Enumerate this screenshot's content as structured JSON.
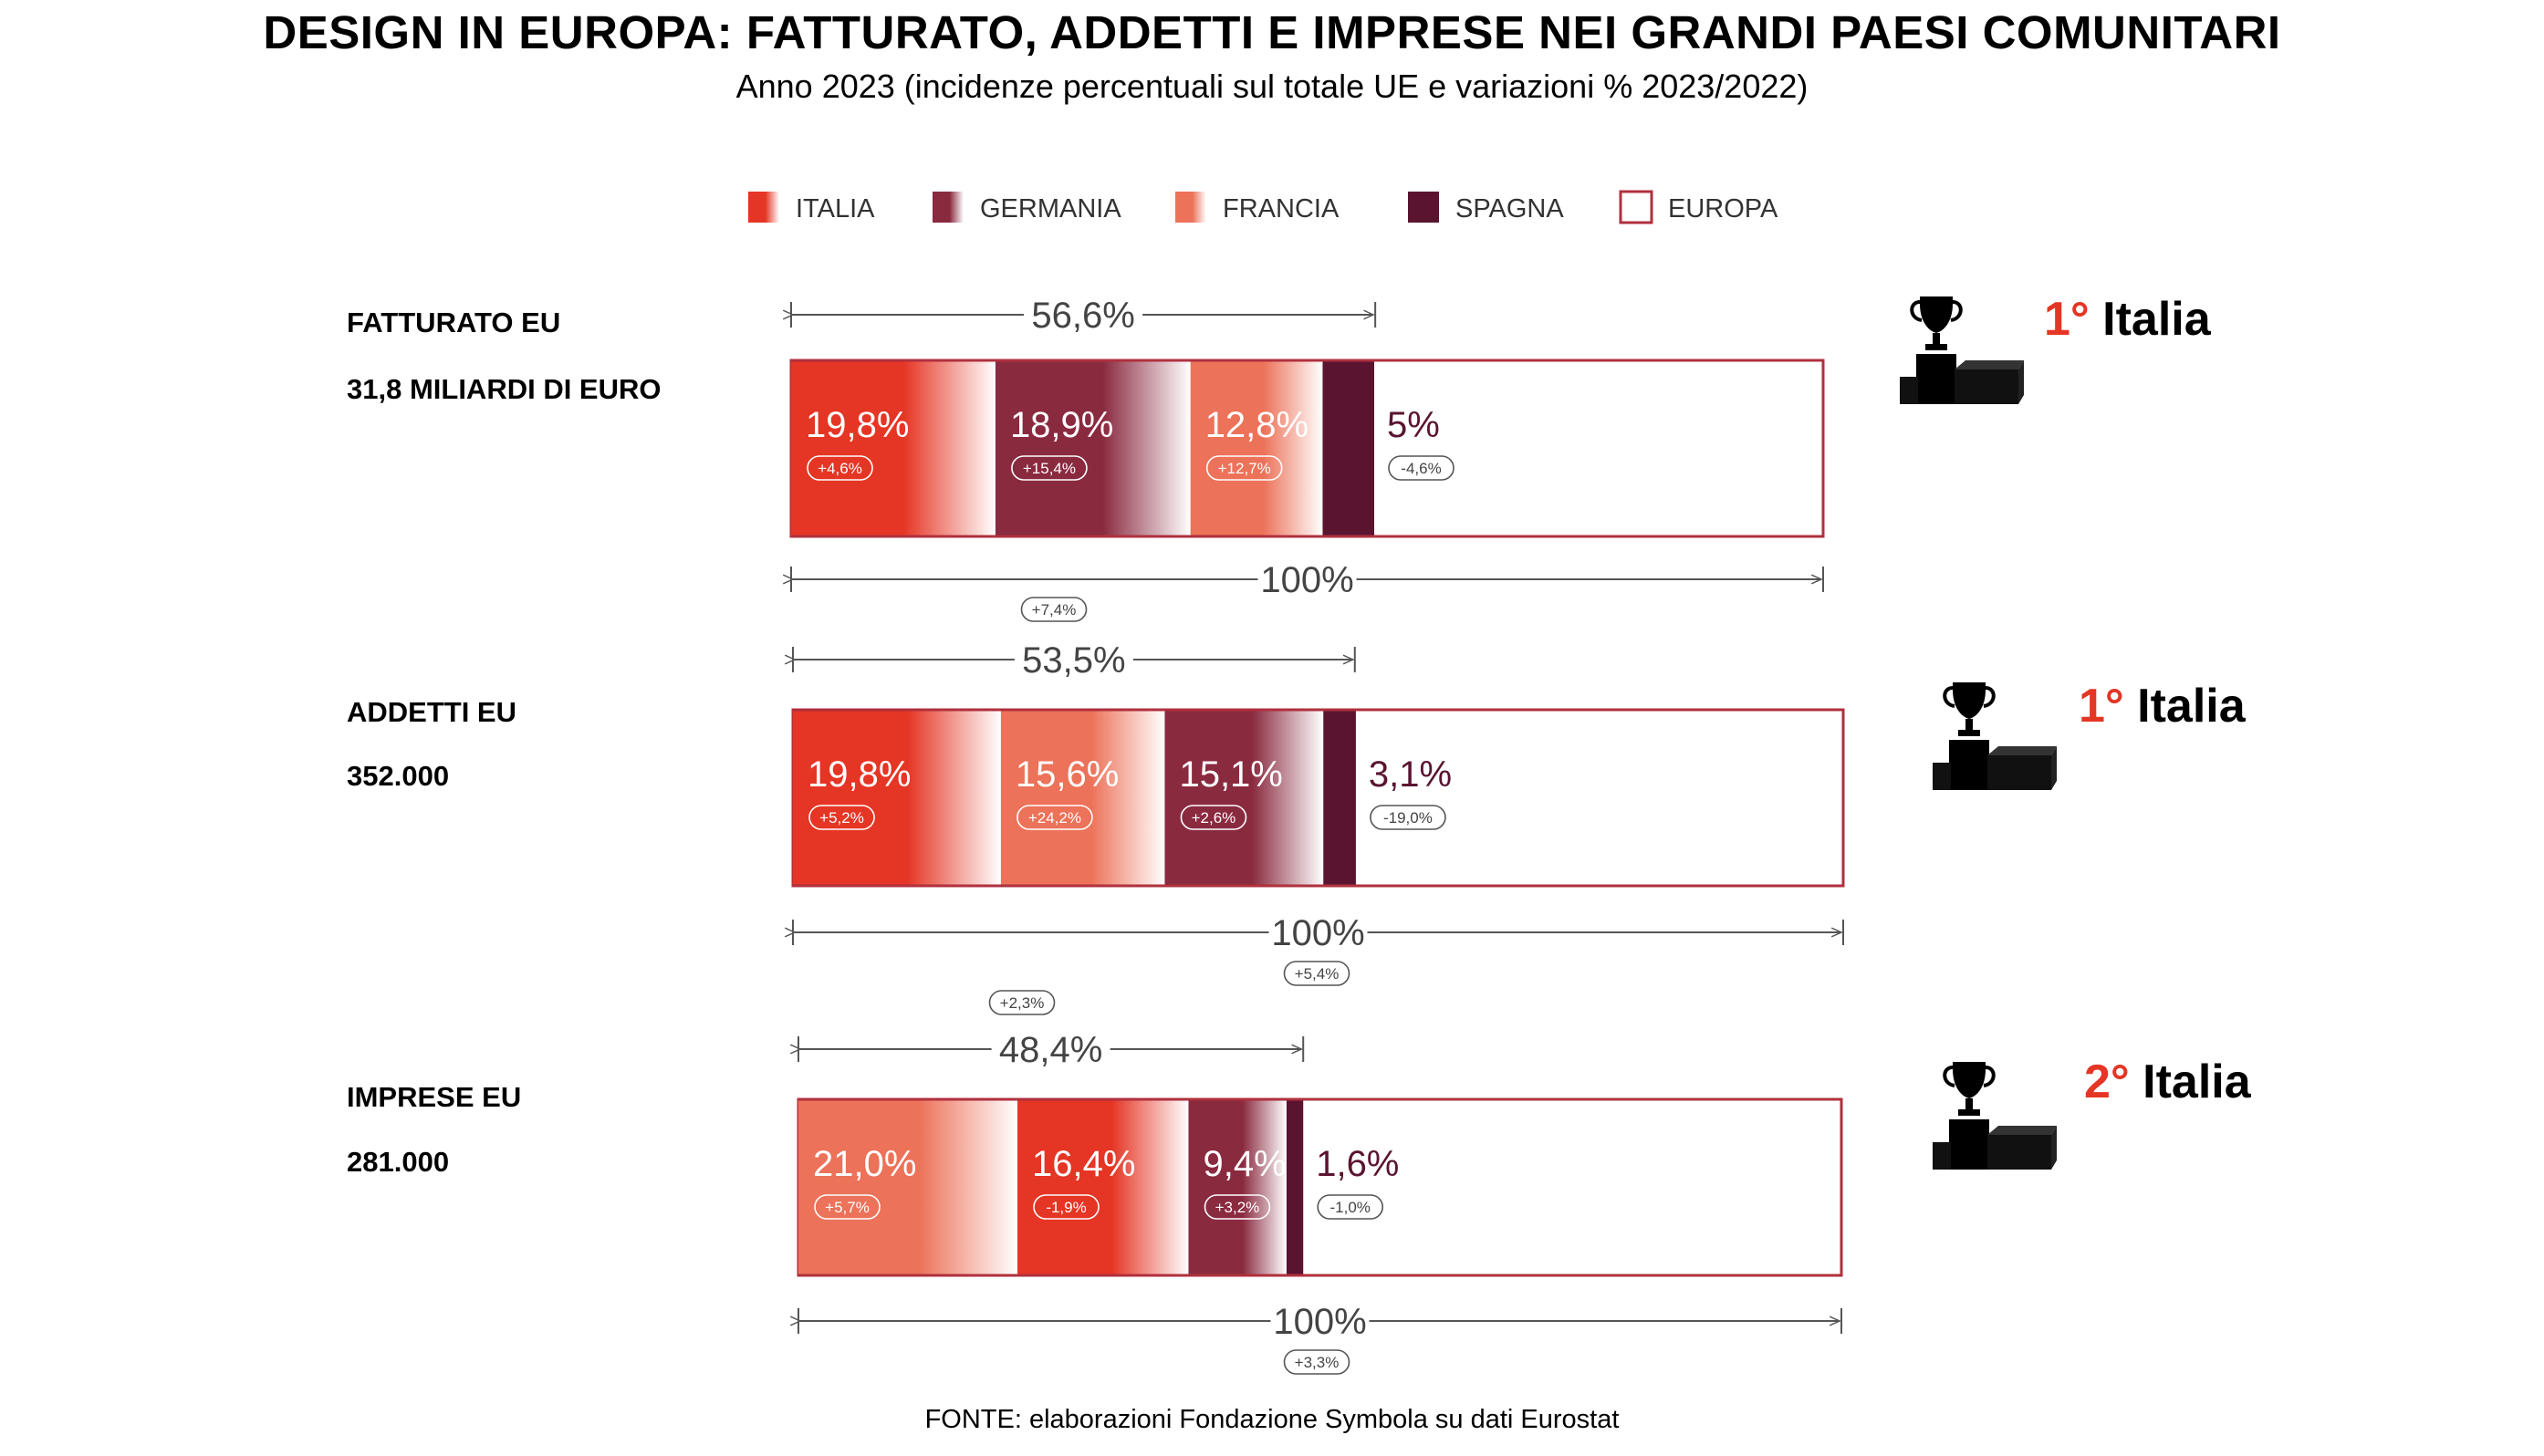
{
  "title": "DESIGN IN EUROPA: FATTURATO, ADDETTI E IMPRESE NEI GRANDI PAESI COMUNITARI",
  "subtitle": "Anno 2023 (incidenze percentuali sul totale UE e variazioni % 2023/2022)",
  "source": "FONTE: elaborazioni Fondazione Symbola su dati Eurostat",
  "colors": {
    "italia": "#e53524",
    "germania": "#8a2a3f",
    "francia": "#ec7259",
    "spagna": "#5a1430",
    "europa": "#b0303e"
  },
  "legend": [
    {
      "key": "italia",
      "label": "ITALIA"
    },
    {
      "key": "germania",
      "label": "GERMANIA"
    },
    {
      "key": "francia",
      "label": "FRANCIA"
    },
    {
      "key": "spagna",
      "label": "SPAGNA"
    },
    {
      "key": "europa",
      "label": "EUROPA"
    }
  ],
  "chart_data": {
    "type": "bar",
    "orientation": "horizontal-stacked",
    "title": "DESIGN IN EUROPA: FATTURATO, ADDETTI E IMPRESE NEI GRANDI PAESI COMUNITARI",
    "subtitle": "Anno 2023 (incidenze percentuali sul totale UE e variazioni % 2023/2022)",
    "unit": "% sul totale UE",
    "xlim": [
      0,
      100
    ],
    "rows": [
      {
        "label": "FATTURATO EU",
        "sublabel": "31,8 MILIARDI DI EURO",
        "rank_num": "1°",
        "rank_country": "Italia",
        "group_share": 56.6,
        "group_label": "56,6%",
        "group_change": "",
        "total_label": "100%",
        "total_change": "+7,4%",
        "segments": [
          {
            "country": "italia",
            "value": 19.8,
            "label": "19,8%",
            "change": "+4,6%"
          },
          {
            "country": "germania",
            "value": 18.9,
            "label": "18,9%",
            "change": "+15,4%"
          },
          {
            "country": "francia",
            "value": 12.8,
            "label": "12,8%",
            "change": "+12,7%"
          },
          {
            "country": "spagna",
            "value": 5.0,
            "label": "5%",
            "change": "-4,6%"
          }
        ]
      },
      {
        "label": "ADDETTI EU",
        "sublabel": "352.000",
        "rank_num": "1°",
        "rank_country": "Italia",
        "group_share": 53.5,
        "group_label": "53,5%",
        "group_change": "",
        "total_label": "100%",
        "total_change": "+5,4%",
        "segments": [
          {
            "country": "italia",
            "value": 19.8,
            "label": "19,8%",
            "change": "+5,2%"
          },
          {
            "country": "francia",
            "value": 15.6,
            "label": "15,6%",
            "change": "+24,2%"
          },
          {
            "country": "germania",
            "value": 15.1,
            "label": "15,1%",
            "change": "+2,6%"
          },
          {
            "country": "spagna",
            "value": 3.1,
            "label": "3,1%",
            "change": "-19,0%"
          }
        ]
      },
      {
        "label": "IMPRESE EU",
        "sublabel": "281.000",
        "rank_num": "2°",
        "rank_country": "Italia",
        "group_share": 48.4,
        "group_label": "48,4%",
        "group_change": "+2,3%",
        "total_label": "100%",
        "total_change": "+3,3%",
        "segments": [
          {
            "country": "francia",
            "value": 21.0,
            "label": "21,0%",
            "change": "+5,7%"
          },
          {
            "country": "italia",
            "value": 16.4,
            "label": "16,4%",
            "change": "-1,9%"
          },
          {
            "country": "germania",
            "value": 9.4,
            "label": "9,4%",
            "change": "+3,2%"
          },
          {
            "country": "spagna",
            "value": 1.6,
            "label": "1,6%",
            "change": "-1,0%"
          }
        ]
      }
    ]
  }
}
